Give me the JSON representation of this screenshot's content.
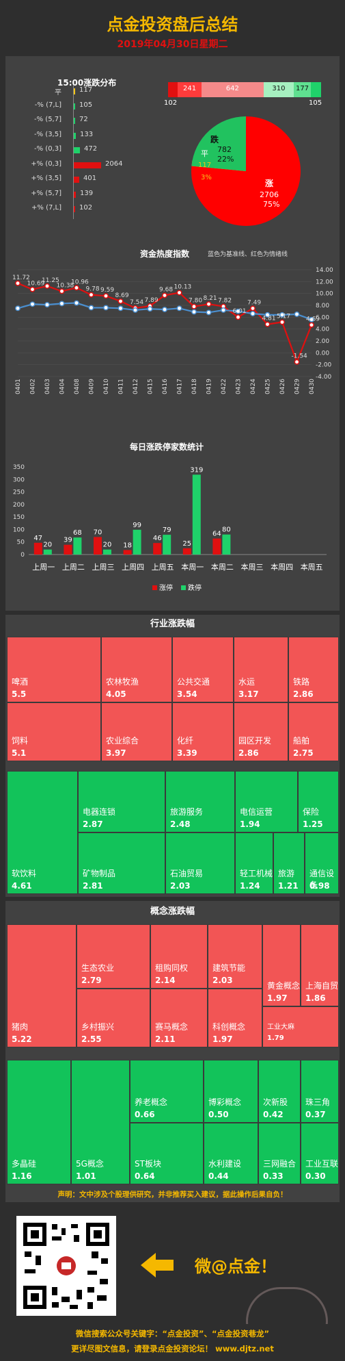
{
  "header": {
    "title": "点金投资盘后总结",
    "date": "2019年04月30日星期二"
  },
  "dist": {
    "title": "15:00涨跌分布",
    "rows": [
      {
        "label": "平",
        "value": "117",
        "color": "#f5c518"
      },
      {
        "label": "-% (7,L]",
        "value": "105",
        "color": "#1fd26a"
      },
      {
        "label": "-% (5,7]",
        "value": "72",
        "color": "#1fd26a"
      },
      {
        "label": "-% (3,5]",
        "value": "133",
        "color": "#1fd26a"
      },
      {
        "label": "-% (0,3]",
        "value": "472",
        "color": "#1fd26a"
      },
      {
        "label": "+% (0,3]",
        "value": "2064",
        "color": "#e01010"
      },
      {
        "label": "+% (3,5]",
        "value": "401",
        "color": "#e01010"
      },
      {
        "label": "+% (5,7]",
        "value": "139",
        "color": "#e01010"
      },
      {
        "label": "+% (7,L]",
        "value": "102",
        "color": "#e01010"
      }
    ],
    "stack": [
      "102",
      "241",
      "642",
      "310",
      "177",
      "105"
    ],
    "pie": {
      "up_label": "涨",
      "up_count": "2706",
      "up_pct": "75%",
      "down_label": "跌",
      "down_count": "782",
      "down_pct": "22%",
      "flat_label": "平",
      "flat_count": "117",
      "flat_pct": "3%"
    }
  },
  "heat": {
    "title": "资金热度指数",
    "legend": "蓝色为基准线、红色为情绪线",
    "y_ticks": [
      "14.00",
      "12.00",
      "10.00",
      "8.00",
      "6.00",
      "4.00",
      "2.00",
      "0.00",
      "-2.00",
      "-4.00"
    ],
    "dates": [
      "0401",
      "0402",
      "0403",
      "0404",
      "0408",
      "0409",
      "0410",
      "0411",
      "0412",
      "0415",
      "0416",
      "0417",
      "0418",
      "0419",
      "0422",
      "0423",
      "0424",
      "0425",
      "0426",
      "0429",
      "0430"
    ]
  },
  "chart_data": [
    {
      "type": "line",
      "title": "资金热度指数",
      "x": [
        "0401",
        "0402",
        "0403",
        "0404",
        "0408",
        "0409",
        "0410",
        "0411",
        "0412",
        "0415",
        "0416",
        "0417",
        "0418",
        "0419",
        "0422",
        "0423",
        "0424",
        "0425",
        "0426",
        "0429",
        "0430"
      ],
      "ylim": [
        -4,
        14
      ],
      "series": [
        {
          "name": "情绪线",
          "color": "#e01010",
          "values": [
            11.72,
            10.69,
            11.25,
            10.38,
            10.96,
            9.78,
            9.59,
            8.69,
            7.54,
            7.89,
            9.68,
            10.13,
            7.8,
            8.21,
            7.82,
            6.01,
            7.49,
            4.81,
            5.17,
            -1.54,
            4.69
          ]
        },
        {
          "name": "基准线",
          "color": "#4a8fd0",
          "values": [
            7.5,
            8.2,
            8.1,
            8.3,
            8.4,
            7.6,
            7.6,
            7.5,
            7.2,
            7.4,
            7.3,
            7.5,
            6.9,
            6.8,
            7.2,
            7.0,
            6.6,
            6.4,
            6.4,
            6.5,
            5.6
          ]
        }
      ],
      "labels": [
        "11.72",
        "10.69",
        "11.25",
        "10.38",
        "10.96",
        "9.78",
        "9.59",
        "8.69",
        "7.54",
        "7.89",
        "9.68",
        "10.13",
        "7.80",
        "8.21",
        "7.82",
        "6.01",
        "7.49",
        "4.81",
        "5.17",
        "-1.54",
        "4.69"
      ]
    },
    {
      "type": "bar",
      "title": "每日涨跌停家数统计",
      "categories": [
        "上周一",
        "上周二",
        "上周三",
        "上周四",
        "上周五",
        "本周一",
        "本周二",
        "本周三",
        "本周四",
        "本周五"
      ],
      "ylim": [
        0,
        350
      ],
      "y_ticks": [
        "350",
        "300",
        "250",
        "200",
        "150",
        "100",
        "50",
        "0"
      ],
      "series": [
        {
          "name": "涨停",
          "color": "#e01010",
          "values": [
            47,
            39,
            70,
            18,
            46,
            25,
            64,
            null,
            null,
            null
          ]
        },
        {
          "name": "跌停",
          "color": "#1fd26a",
          "values": [
            20,
            68,
            20,
            99,
            79,
            319,
            80,
            null,
            null,
            null
          ]
        }
      ]
    }
  ],
  "industry": {
    "title": "行业涨跌幅",
    "up": [
      {
        "name": "啤酒",
        "value": "5.5"
      },
      {
        "name": "农林牧渔",
        "value": "4.05"
      },
      {
        "name": "公共交通",
        "value": "3.54"
      },
      {
        "name": "水运",
        "value": "3.17"
      },
      {
        "name": "铁路",
        "value": "2.86"
      },
      {
        "name": "饲料",
        "value": "5.1"
      },
      {
        "name": "农业综合",
        "value": "3.97"
      },
      {
        "name": "化纤",
        "value": "3.39"
      },
      {
        "name": "园区开发",
        "value": "2.86"
      },
      {
        "name": "船舶",
        "value": "2.75"
      }
    ],
    "down": [
      {
        "name": "软饮料",
        "value": "4.61"
      },
      {
        "name": "电器连锁",
        "value": "2.87"
      },
      {
        "name": "旅游服务",
        "value": "2.48"
      },
      {
        "name": "电信运营",
        "value": "1.94"
      },
      {
        "name": "保险",
        "value": "1.25"
      },
      {
        "name": "矿物制品",
        "value": "2.81"
      },
      {
        "name": "石油贸易",
        "value": "2.03"
      },
      {
        "name": "轻工机械",
        "value": "1.24"
      },
      {
        "name": "旅游",
        "value": "1.21"
      },
      {
        "name": "通信设备",
        "value": "0.98"
      }
    ]
  },
  "concept": {
    "title": "概念涨跌幅",
    "up": [
      {
        "name": "猪肉",
        "value": "5.22"
      },
      {
        "name": "生态农业",
        "value": "2.79"
      },
      {
        "name": "租购同权",
        "value": "2.14"
      },
      {
        "name": "建筑节能",
        "value": "2.03"
      },
      {
        "name": "黄金概念",
        "value": "1.97"
      },
      {
        "name": "上海自贸",
        "value": "1.86"
      },
      {
        "name": "乡村振兴",
        "value": "2.55"
      },
      {
        "name": "赛马概念",
        "value": "2.11"
      },
      {
        "name": "科创概念",
        "value": "1.97"
      },
      {
        "name": "工业大麻",
        "value": "1.79"
      }
    ],
    "down": [
      {
        "name": "多晶硅",
        "value": "1.16"
      },
      {
        "name": "5G概念",
        "value": "1.01"
      },
      {
        "name": "养老概念",
        "value": "0.66"
      },
      {
        "name": "博彩概念",
        "value": "0.50"
      },
      {
        "name": "次新股",
        "value": "0.42"
      },
      {
        "name": "珠三角",
        "value": "0.37"
      },
      {
        "name": "ST板块",
        "value": "0.64"
      },
      {
        "name": "水利建设",
        "value": "0.44"
      },
      {
        "name": "三网融合",
        "value": "0.33"
      },
      {
        "name": "工业互联",
        "value": "0.30"
      }
    ]
  },
  "disclaimer": "声明：文中涉及个股理供研究，并非推荐买入建议，据此操作后果自负！",
  "footer": {
    "weixin": "微@点金！",
    "line1": "微信搜索公众号关键字：“点金投资”、“点金投资巷龙”",
    "line2": "更详尽图文信息，请登录点金投资论坛！  www.djtz.net"
  },
  "colors": {
    "up": "#f25555",
    "down": "#12c35a",
    "accent": "#f5b800",
    "title_red": "#e01010"
  }
}
